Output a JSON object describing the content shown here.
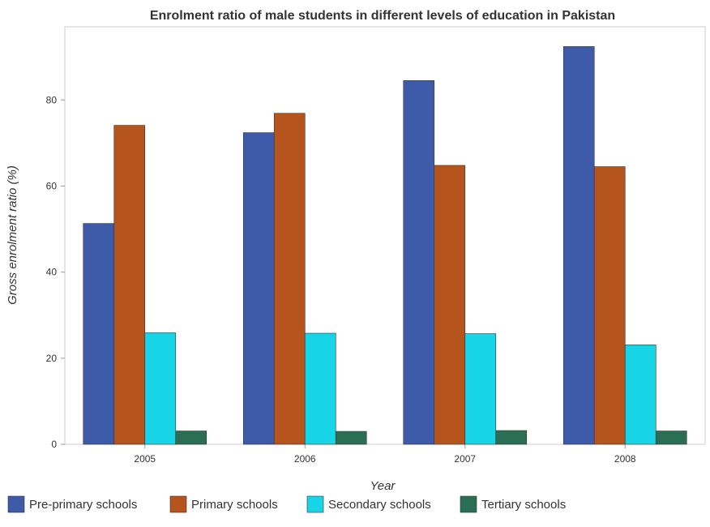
{
  "chart_data": {
    "type": "bar",
    "title": "Enrolment ratio of male students in different levels of education in Pakistan",
    "xlabel": "Year",
    "ylabel": "Gross enrolment ratio (%)",
    "categories": [
      "2005",
      "2006",
      "2007",
      "2008"
    ],
    "ylim": [
      0,
      97
    ],
    "yticks": [
      "0",
      "20",
      "40",
      "60",
      "80"
    ],
    "grid": false,
    "legend_placement": "bottom",
    "series": [
      {
        "name": "Pre-primary schools",
        "color": "#3d5ba9",
        "values": [
          51.3,
          72.4,
          84.5,
          92.4
        ]
      },
      {
        "name": "Primary schools",
        "color": "#b5541c",
        "values": [
          74.1,
          76.9,
          64.8,
          64.5
        ]
      },
      {
        "name": "Secondary schools",
        "color": "#17d4e6",
        "values": [
          25.9,
          25.8,
          25.7,
          23.1
        ]
      },
      {
        "name": "Tertiary schools",
        "color": "#2a6e56",
        "values": [
          3.1,
          3.0,
          3.2,
          3.1
        ]
      }
    ]
  }
}
